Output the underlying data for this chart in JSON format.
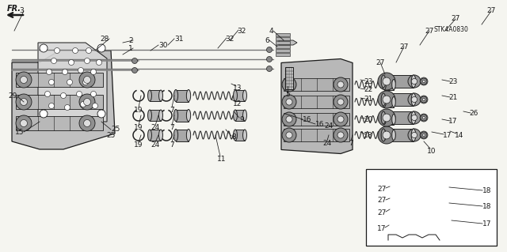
{
  "bg_color": "#f5f5f0",
  "diagram_code": "STK4A0830",
  "fig_width": 6.4,
  "fig_height": 3.19,
  "dpi": 100,
  "line_color": "#1a1a1a",
  "dark_gray": "#555555",
  "mid_gray": "#888888",
  "light_gray": "#bbbbbb",
  "part_color": "#999999",
  "body_color": "#aaaaaa"
}
